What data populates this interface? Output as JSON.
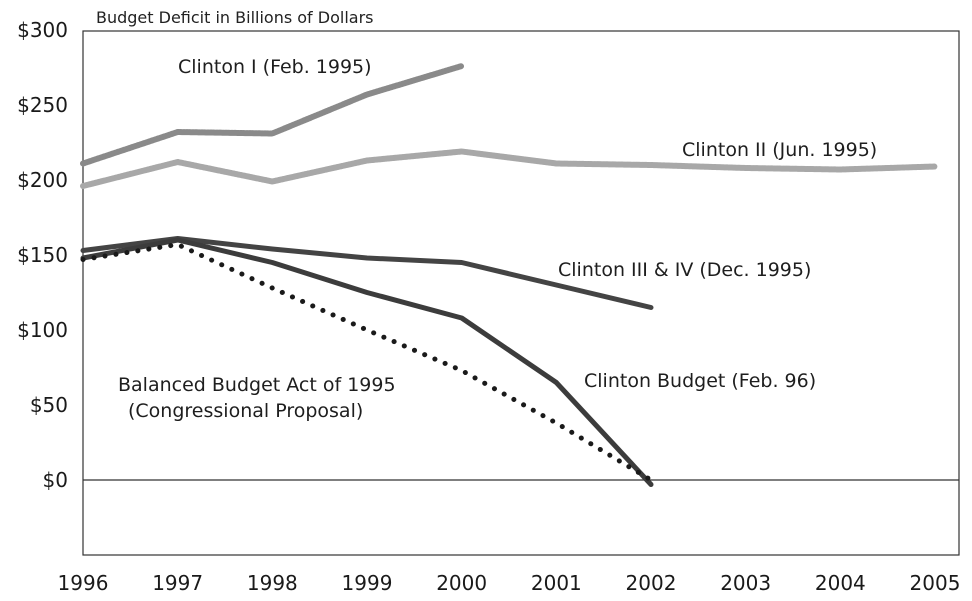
{
  "chart_data": {
    "type": "line",
    "title": "Budget Deficit in Billions of Dollars",
    "xlabel": "",
    "ylabel": "",
    "x": [
      1996,
      1997,
      1998,
      1999,
      2000,
      2001,
      2002,
      2003,
      2004,
      2005
    ],
    "x_tick_labels": [
      "1996",
      "1997",
      "1998",
      "1999",
      "2000",
      "2001",
      "2002",
      "2003",
      "2004",
      "2005"
    ],
    "y_tick_labels": [
      "$300",
      "$250",
      "$200",
      "$150",
      "$100",
      "$50",
      "$0"
    ],
    "y_tick_values": [
      300,
      250,
      200,
      150,
      100,
      50,
      0
    ],
    "xlim": [
      1996,
      2005
    ],
    "ylim": [
      -50,
      300
    ],
    "grid": false,
    "series": [
      {
        "name": "Clinton I (Feb. 1995)",
        "x": [
          1996,
          1997,
          1998,
          1999,
          2000
        ],
        "y": [
          211,
          232,
          231,
          257,
          276
        ],
        "color": "#8a8a8a",
        "style": "textured"
      },
      {
        "name": "Clinton II (Jun. 1995)",
        "x": [
          1996,
          1997,
          1998,
          1999,
          2000,
          2001,
          2002,
          2003,
          2004,
          2005
        ],
        "y": [
          196,
          212,
          199,
          213,
          219,
          211,
          210,
          208,
          207,
          209
        ],
        "color": "#a8a8a8",
        "style": "textured"
      },
      {
        "name": "Clinton III & IV (Dec. 1995)",
        "x": [
          1996,
          1997,
          1998,
          1999,
          2000,
          2001,
          2002
        ],
        "y": [
          153,
          161,
          154,
          148,
          145,
          130,
          115
        ],
        "color": "#444444",
        "style": "solid"
      },
      {
        "name": "Clinton  Budget (Feb. 96)",
        "x": [
          1996,
          1997,
          1998,
          1999,
          2000,
          2001,
          2002
        ],
        "y": [
          148,
          160,
          145,
          125,
          108,
          65,
          -3
        ],
        "color": "#3c3c3c",
        "style": "solid"
      },
      {
        "name": "Balanced Budget Act of 1995",
        "name_line2": "(Congressional Proposal)",
        "x": [
          1996,
          1997,
          1998,
          1999,
          2000,
          2001,
          2002
        ],
        "y": [
          147,
          157,
          128,
          100,
          73,
          38,
          0
        ],
        "color": "#1a1a1a",
        "style": "dotted"
      }
    ]
  }
}
